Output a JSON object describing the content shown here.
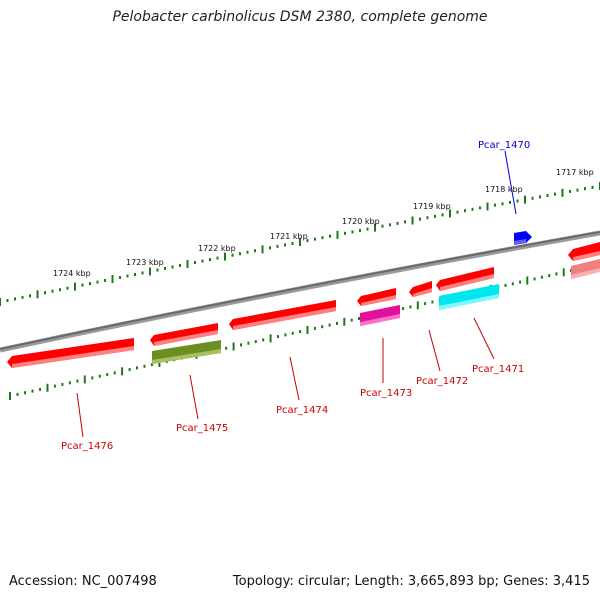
{
  "title": "Pelobacter carbinolicus DSM 2380, complete genome",
  "footer": {
    "accession_label": "Accession:",
    "accession": "NC_007498",
    "topology_text": "Topology: circular; Length: 3,665,893 bp; Genes: 3,415"
  },
  "colors": {
    "backbone": "#808080",
    "ticks": "#1a7a1a",
    "gene_default": "#ff0000",
    "label_red": "#cc0000",
    "label_blue": "#0000cc"
  },
  "scale": {
    "unit": "kbp",
    "labels": [
      "1724 kbp",
      "1723 kbp",
      "1722 kbp",
      "1721 kbp",
      "1720 kbp",
      "1719 kbp",
      "1718 kbp",
      "1717 kbp"
    ]
  },
  "genes": [
    {
      "id": "Pcar_1476",
      "strand": "+",
      "color": "#ff0000"
    },
    {
      "id": "Pcar_1475",
      "strand": "+",
      "color": "#ff0000"
    },
    {
      "id": "Pcar_1475",
      "strand": "-",
      "color": "#6b8e23"
    },
    {
      "id": "Pcar_1474",
      "strand": "+",
      "color": "#ff0000"
    },
    {
      "id": "Pcar_1473",
      "strand": "+",
      "color": "#ff0000"
    },
    {
      "id": "Pcar_1473",
      "strand": "-",
      "color": "#e0109a"
    },
    {
      "id": "Pcar_1472",
      "strand": "+",
      "color": "#ff0000"
    },
    {
      "id": "Pcar_1471",
      "strand": "+",
      "color": "#ff0000"
    },
    {
      "id": "Pcar_1471",
      "strand": "-",
      "color": "#00e5ee"
    },
    {
      "id": "Pcar_1470",
      "strand": "+",
      "color": "#0000ff"
    },
    {
      "id": "",
      "strand": "+",
      "color": "#ff0000"
    },
    {
      "id": "",
      "strand": "-",
      "color": "#f08080"
    }
  ],
  "labels": [
    {
      "text": "Pcar_1476",
      "color": "#cc0000"
    },
    {
      "text": "Pcar_1475",
      "color": "#cc0000"
    },
    {
      "text": "Pcar_1474",
      "color": "#cc0000"
    },
    {
      "text": "Pcar_1473",
      "color": "#cc0000"
    },
    {
      "text": "Pcar_1472",
      "color": "#cc0000"
    },
    {
      "text": "Pcar_1471",
      "color": "#cc0000"
    },
    {
      "text": "Pcar_1470",
      "color": "#0000cc"
    }
  ]
}
